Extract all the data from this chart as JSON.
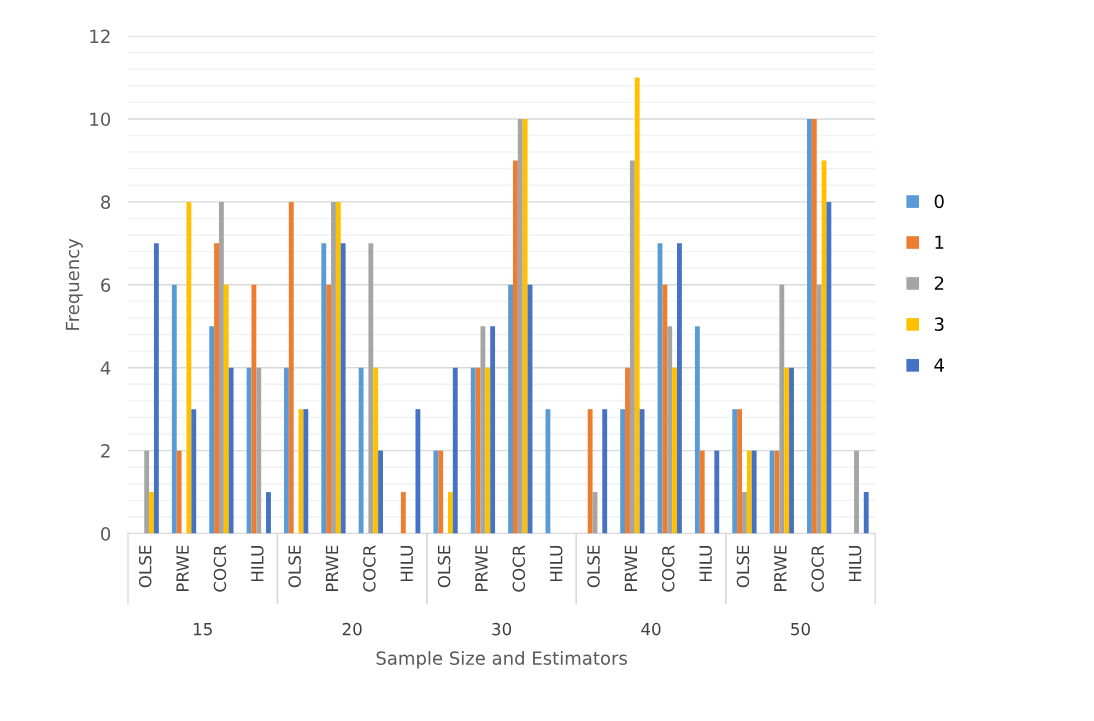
{
  "chart_data": {
    "type": "bar",
    "xlabel": "Sample Size and Estimators",
    "ylabel": "Frequency",
    "categories": [
      "OLSE",
      "PRWE",
      "COCR",
      "HILU",
      "OLSE",
      "PRWE",
      "COCR",
      "HILU",
      "OLSE",
      "PRWE",
      "COCR",
      "HILU",
      "OLSE",
      "PRWE",
      "COCR",
      "HILU",
      "OLSE",
      "PRWE",
      "COCR",
      "HILU"
    ],
    "annotations": [
      "15",
      "20",
      "30",
      "40",
      "50"
    ],
    "series": [
      {
        "name": "0",
        "color": "#5b9bd5",
        "values": [
          0,
          6,
          5,
          4,
          4,
          7,
          4,
          0,
          2,
          4,
          6,
          3,
          0,
          3,
          7,
          5,
          3,
          2,
          10,
          0
        ]
      },
      {
        "name": "1",
        "color": "#ed7d31",
        "values": [
          0,
          2,
          7,
          6,
          8,
          6,
          0,
          1,
          2,
          4,
          9,
          0,
          3,
          4,
          6,
          2,
          3,
          2,
          10,
          0
        ]
      },
      {
        "name": "2",
        "color": "#a5a5a5",
        "values": [
          2,
          0,
          8,
          4,
          0,
          8,
          7,
          0,
          0,
          5,
          10,
          0,
          1,
          9,
          5,
          0,
          1,
          6,
          6,
          2
        ]
      },
      {
        "name": "3",
        "color": "#ffc000",
        "values": [
          1,
          8,
          6,
          0,
          3,
          8,
          4,
          0,
          1,
          4,
          10,
          0,
          0,
          11,
          4,
          0,
          2,
          4,
          9,
          0
        ]
      },
      {
        "name": "4",
        "color": "#4472c4",
        "values": [
          7,
          3,
          4,
          1,
          3,
          7,
          2,
          3,
          4,
          5,
          6,
          0,
          3,
          3,
          7,
          2,
          2,
          4,
          8,
          1
        ]
      }
    ],
    "ylim": [
      0,
      12
    ],
    "yticks": [
      0,
      {
        "value": 0.4,
        "label": null
      },
      {
        "value": 0.8,
        "label": null
      },
      {
        "value": 1.2,
        "label": null
      },
      {
        "value": 1.6,
        "label": null
      },
      2,
      {
        "value": 2.4,
        "label": null
      },
      {
        "value": 2.8,
        "label": null
      },
      {
        "value": 3.2,
        "label": null
      },
      {
        "value": 3.6,
        "label": null
      },
      4,
      {
        "value": 4.4,
        "label": null
      },
      {
        "value": 4.8,
        "label": null
      },
      {
        "value": 5.2,
        "label": null
      },
      {
        "value": 5.6,
        "label": null
      },
      6,
      {
        "value": 6.4,
        "label": null
      },
      {
        "value": 6.8,
        "label": null
      },
      {
        "value": 7.2,
        "label": null
      },
      {
        "value": 7.6,
        "label": null
      },
      8,
      {
        "value": 8.4,
        "label": null
      },
      {
        "value": 8.8,
        "label": null
      },
      {
        "value": 9.2,
        "label": null
      },
      {
        "value": 9.6,
        "label": null
      },
      10,
      {
        "value": 10.4,
        "label": null
      },
      {
        "value": 10.8,
        "label": null
      },
      {
        "value": 11.2,
        "label": null
      },
      {
        "value": 11.6,
        "label": null
      },
      12
    ],
    "grid": "y",
    "legend": "right"
  }
}
